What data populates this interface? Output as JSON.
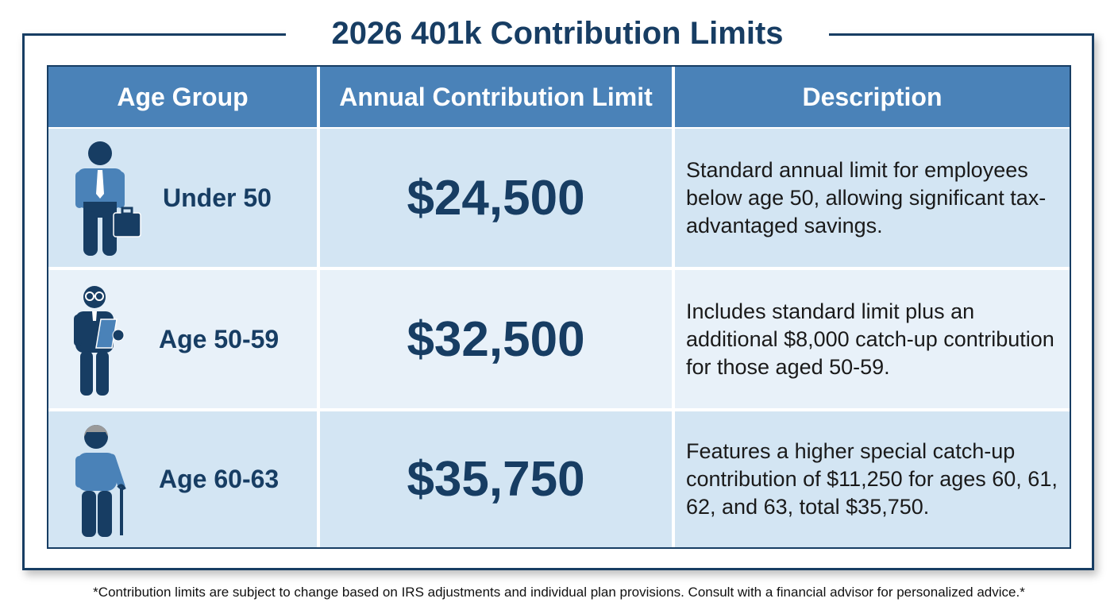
{
  "title": "2026 401k Contribution Limits",
  "colors": {
    "header": "#4a82b8",
    "navy": "#173d63",
    "row_light": "#d3e5f3",
    "row_lighter": "#e8f1f9"
  },
  "headers": [
    "Age Group",
    "Annual Contribution Limit",
    "Description"
  ],
  "rows": [
    {
      "icon": "businessman-briefcase-icon",
      "age": "Under 50",
      "limit": "$24,500",
      "description": "Standard annual limit for employees below age 50, allowing significant tax-advantaged savings."
    },
    {
      "icon": "man-glasses-clipboard-icon",
      "age": "Age 50-59",
      "limit": "$32,500",
      "description": "Includes standard limit plus an additional $8,000 catch-up contribution for those aged 50-59."
    },
    {
      "icon": "elderly-man-cane-icon",
      "age": "Age 60-63",
      "limit": "$35,750",
      "description": "Features a higher special catch-up contribution of $11,250 for ages 60, 61, 62, and 63, total $35,750."
    }
  ],
  "footnote": "*Contribution limits are subject to change based on IRS adjustments and individual plan provisions. Consult with a financial advisor for personalized advice.*"
}
